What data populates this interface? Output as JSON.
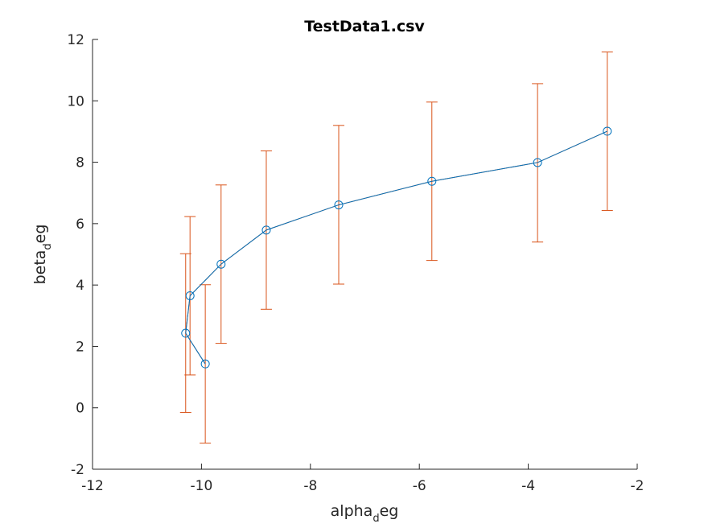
{
  "chart_data": {
    "type": "line",
    "title": "TestData1.csv",
    "xlabel": {
      "prefix": "alpha",
      "sub": "d",
      "suffix": "eg"
    },
    "ylabel": {
      "prefix": "beta",
      "sub": "d",
      "suffix": "eg"
    },
    "xlim": [
      -12,
      -2
    ],
    "ylim": [
      -2,
      12
    ],
    "xticks": [
      -12,
      -10,
      -8,
      -6,
      -4,
      -2
    ],
    "yticks": [
      -2,
      0,
      2,
      4,
      6,
      8,
      10,
      12
    ],
    "xtick_labels": [
      "-12",
      "-10",
      "-8",
      "-6",
      "-4",
      "-2"
    ],
    "ytick_labels": [
      "-2",
      "0",
      "2",
      "4",
      "6",
      "8",
      "10",
      "12"
    ],
    "grid": false,
    "series": [
      {
        "x": [
          -9.93,
          -10.29,
          -10.21,
          -9.64,
          -8.81,
          -7.48,
          -5.77,
          -3.83,
          -2.55
        ],
        "y": [
          1.43,
          2.43,
          3.65,
          4.68,
          5.79,
          6.61,
          7.38,
          7.99,
          9.01
        ],
        "err_low": [
          -1.15,
          -0.15,
          1.07,
          2.1,
          3.21,
          4.03,
          4.8,
          5.4,
          6.43
        ],
        "err_high": [
          4.01,
          5.02,
          6.23,
          7.26,
          8.37,
          9.2,
          9.96,
          10.56,
          11.59
        ]
      }
    ],
    "colors": {
      "line": "#0072bd",
      "errorbar": "#d95319",
      "axis": "#262626"
    }
  }
}
